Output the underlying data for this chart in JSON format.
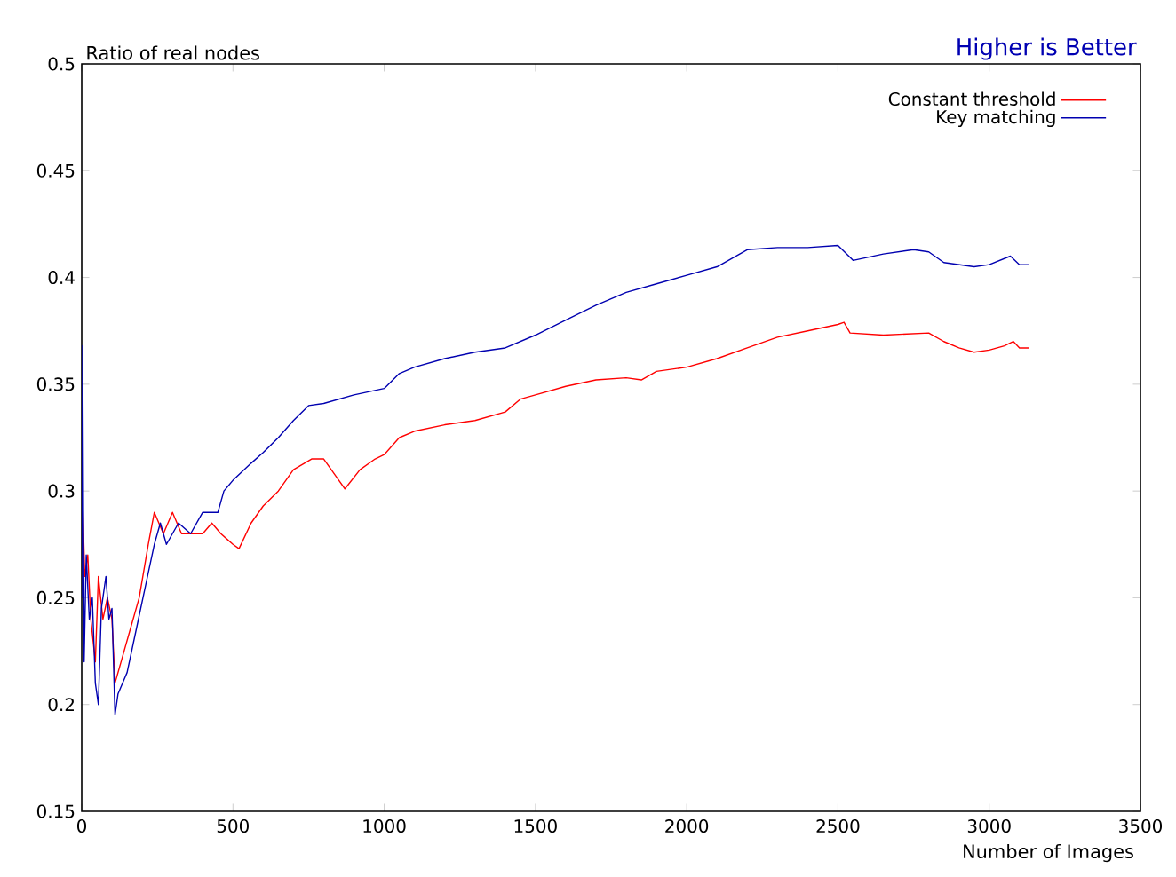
{
  "chart_data": {
    "type": "line",
    "ylabel": "Ratio of real nodes",
    "xlabel": "Number of Images",
    "annotations": [
      "Higher is Better"
    ],
    "xlim": [
      0,
      3500
    ],
    "xticks": [
      0,
      500,
      1000,
      1500,
      2000,
      2500,
      3000,
      3500
    ],
    "ylim": [
      0.15,
      0.5
    ],
    "yticks": [
      0.15,
      0.2,
      0.25,
      0.3,
      0.35,
      0.4,
      0.45,
      0.5
    ],
    "legend": "top right",
    "grid": false,
    "marker": "none",
    "line_style": "solid",
    "series": [
      {
        "name": "Constant threshold",
        "color": "#ff0000",
        "x": [
          2,
          10,
          20,
          30,
          45,
          55,
          70,
          85,
          100,
          110,
          130,
          160,
          190,
          220,
          240,
          270,
          300,
          330,
          360,
          400,
          430,
          460,
          500,
          520,
          560,
          600,
          650,
          700,
          760,
          800,
          850,
          870,
          920,
          970,
          1000,
          1050,
          1100,
          1200,
          1300,
          1400,
          1450,
          1500,
          1600,
          1700,
          1800,
          1850,
          1900,
          2000,
          2100,
          2200,
          2300,
          2400,
          2500,
          2520,
          2540,
          2650,
          2800,
          2850,
          2900,
          2950,
          3000,
          3050,
          3080,
          3100,
          3130
        ],
        "values": [
          0.3,
          0.26,
          0.27,
          0.24,
          0.22,
          0.26,
          0.24,
          0.25,
          0.24,
          0.21,
          0.22,
          0.235,
          0.25,
          0.275,
          0.29,
          0.28,
          0.29,
          0.28,
          0.28,
          0.28,
          0.285,
          0.28,
          0.275,
          0.273,
          0.285,
          0.293,
          0.3,
          0.31,
          0.315,
          0.315,
          0.305,
          0.301,
          0.31,
          0.315,
          0.317,
          0.325,
          0.328,
          0.331,
          0.333,
          0.337,
          0.343,
          0.345,
          0.349,
          0.352,
          0.353,
          0.352,
          0.356,
          0.358,
          0.362,
          0.367,
          0.372,
          0.375,
          0.378,
          0.379,
          0.374,
          0.373,
          0.374,
          0.37,
          0.367,
          0.365,
          0.366,
          0.368,
          0.37,
          0.367,
          0.367
        ]
      },
      {
        "name": "Key matching",
        "color": "#0000b0",
        "x": [
          0,
          3,
          8,
          15,
          25,
          35,
          45,
          55,
          65,
          80,
          90,
          100,
          110,
          120,
          150,
          180,
          210,
          240,
          260,
          280,
          320,
          360,
          400,
          430,
          450,
          470,
          500,
          560,
          600,
          650,
          700,
          750,
          800,
          900,
          1000,
          1050,
          1100,
          1200,
          1300,
          1400,
          1500,
          1600,
          1700,
          1800,
          1900,
          2000,
          2100,
          2200,
          2300,
          2400,
          2500,
          2550,
          2650,
          2750,
          2800,
          2850,
          2950,
          3000,
          3070,
          3100,
          3130
        ],
        "values": [
          0.25,
          0.368,
          0.22,
          0.27,
          0.24,
          0.25,
          0.21,
          0.2,
          0.245,
          0.26,
          0.24,
          0.245,
          0.195,
          0.205,
          0.215,
          0.235,
          0.255,
          0.275,
          0.285,
          0.275,
          0.285,
          0.28,
          0.29,
          0.29,
          0.29,
          0.3,
          0.305,
          0.313,
          0.318,
          0.325,
          0.333,
          0.34,
          0.341,
          0.345,
          0.348,
          0.355,
          0.358,
          0.362,
          0.365,
          0.367,
          0.373,
          0.38,
          0.387,
          0.393,
          0.397,
          0.401,
          0.405,
          0.413,
          0.414,
          0.414,
          0.415,
          0.408,
          0.411,
          0.413,
          0.412,
          0.407,
          0.405,
          0.406,
          0.41,
          0.406,
          0.406
        ]
      }
    ]
  }
}
